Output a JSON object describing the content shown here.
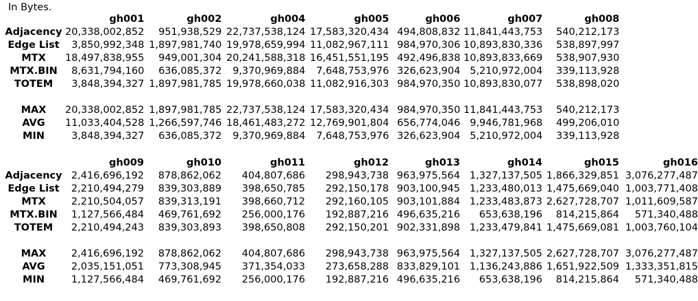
{
  "caption": "In Bytes.",
  "tables": [
    {
      "columns": [
        "gh001",
        "gh002",
        "gh004",
        "gh005",
        "gh006",
        "gh007",
        "gh008"
      ],
      "rows": [
        {
          "label": "Adjacency",
          "values": [
            "20,338,002,852",
            "951,938,529",
            "22,737,538,124",
            "17,583,320,434",
            "494,808,832",
            "11,841,443,753",
            "540,212,173"
          ]
        },
        {
          "label": "Edge List",
          "values": [
            "3,850,992,348",
            "1,897,981,740",
            "19,978,659,994",
            "11,082,967,111",
            "984,970,306",
            "10,893,830,336",
            "538,897,997"
          ]
        },
        {
          "label": "MTX",
          "values": [
            "18,497,838,955",
            "949,001,304",
            "20,241,588,318",
            "16,451,551,195",
            "492,496,838",
            "10,893,833,669",
            "538,907,930"
          ]
        },
        {
          "label": "MTX.BIN",
          "values": [
            "8,631,794,160",
            "636,085,372",
            "9,370,969,884",
            "7,648,753,976",
            "326,623,904",
            "5,210,972,004",
            "339,113,928"
          ]
        },
        {
          "label": "TOTEM",
          "values": [
            "3,848,394,327",
            "1,897,981,785",
            "19,978,660,038",
            "11,082,916,303",
            "984,970,350",
            "10,893,830,077",
            "538,898,020"
          ]
        }
      ],
      "stats": [
        {
          "label": "MAX",
          "values": [
            "20,338,002,852",
            "1,897,981,785",
            "22,737,538,124",
            "17,583,320,434",
            "984,970,350",
            "11,841,443,753",
            "540,212,173"
          ]
        },
        {
          "label": "AVG",
          "values": [
            "11,033,404,528",
            "1,266,597,746",
            "18,461,483,272",
            "12,769,901,804",
            "656,774,046",
            "9,946,781,968",
            "499,206,010"
          ]
        },
        {
          "label": "MIN",
          "values": [
            "3,848,394,327",
            "636,085,372",
            "9,370,969,884",
            "7,648,753,976",
            "326,623,904",
            "5,210,972,004",
            "339,113,928"
          ]
        }
      ]
    },
    {
      "columns": [
        "gh009",
        "gh010",
        "gh011",
        "gh012",
        "gh013",
        "gh014",
        "gh015",
        "gh016"
      ],
      "rows": [
        {
          "label": "Adjacency",
          "values": [
            "2,416,696,192",
            "878,862,062",
            "404,807,686",
            "298,943,738",
            "963,975,564",
            "1,327,137,505",
            "1,866,329,851",
            "3,076,277,487"
          ]
        },
        {
          "label": "Edge List",
          "values": [
            "2,210,494,279",
            "839,303,889",
            "398,650,785",
            "292,150,178",
            "903,100,945",
            "1,233,480,013",
            "1,475,669,040",
            "1,003,771,408"
          ]
        },
        {
          "label": "MTX",
          "values": [
            "2,210,504,057",
            "839,313,191",
            "398,660,712",
            "292,160,105",
            "903,101,884",
            "1,233,483,873",
            "2,627,728,707",
            "1,011,609,587"
          ]
        },
        {
          "label": "MTX.BIN",
          "values": [
            "1,127,566,484",
            "469,761,692",
            "256,000,176",
            "192,887,216",
            "496,635,216",
            "653,638,196",
            "814,215,864",
            "571,340,488"
          ]
        },
        {
          "label": "TOTEM",
          "values": [
            "2,210,494,243",
            "839,303,893",
            "398,650,808",
            "292,150,201",
            "902,331,898",
            "1,233,479,841",
            "1,475,669,081",
            "1,003,760,104"
          ]
        }
      ],
      "stats": [
        {
          "label": "MAX",
          "values": [
            "2,416,696,192",
            "878,862,062",
            "404,807,686",
            "298,943,738",
            "963,975,564",
            "1,327,137,505",
            "2,627,728,707",
            "3,076,277,487"
          ]
        },
        {
          "label": "AVG",
          "values": [
            "2,035,151,051",
            "773,308,945",
            "371,354,033",
            "273,658,288",
            "833,829,101",
            "1,136,243,886",
            "1,651,922,509",
            "1,333,351,815"
          ]
        },
        {
          "label": "MIN",
          "values": [
            "1,127,566,484",
            "469,761,692",
            "256,000,176",
            "192,887,216",
            "496,635,216",
            "653,638,196",
            "814,215,864",
            "571,340,488"
          ]
        }
      ]
    }
  ]
}
